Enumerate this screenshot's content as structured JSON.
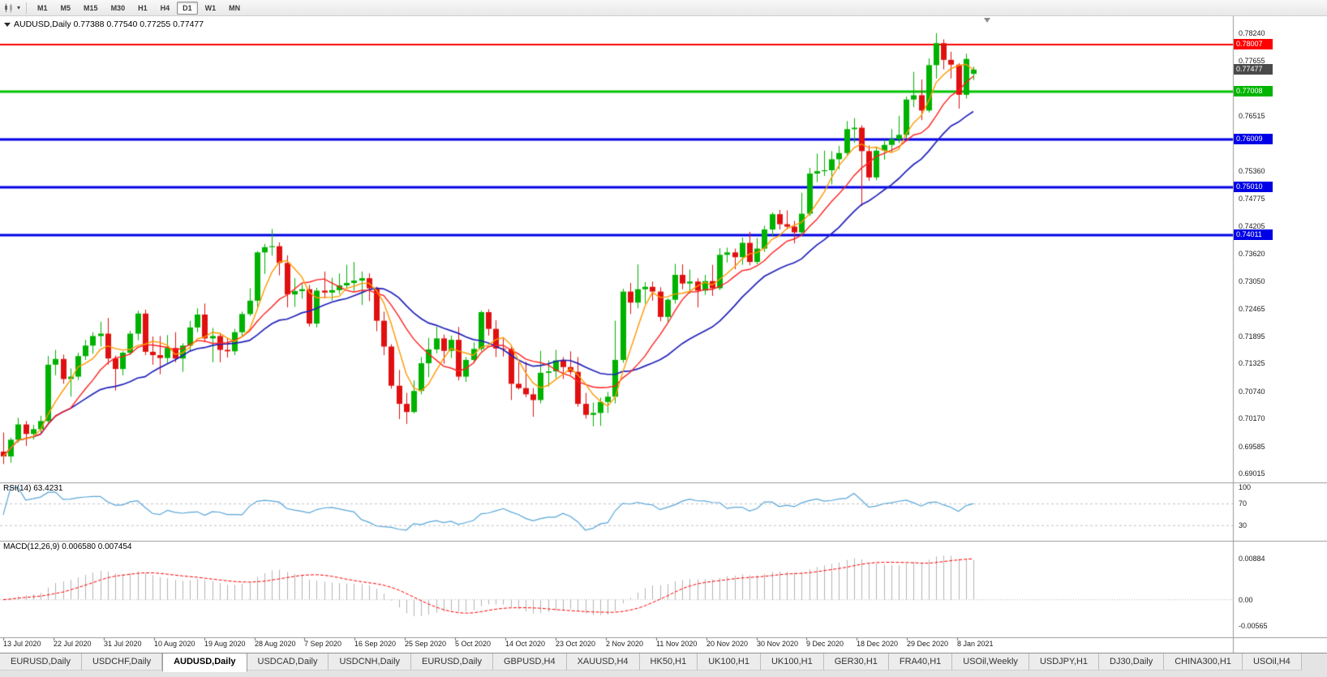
{
  "toolbar": {
    "timeframes": [
      "M1",
      "M5",
      "M15",
      "M30",
      "H1",
      "H4",
      "D1",
      "W1",
      "MN"
    ],
    "active_timeframe": "D1"
  },
  "chart": {
    "symbol": "AUDUSD",
    "period": "Daily",
    "title": "AUDUSD,Daily 0.77388 0.77540 0.77255 0.77477",
    "open": "0.77388",
    "high": "0.77540",
    "low": "0.77255",
    "close": "0.77477"
  },
  "price_axis": {
    "ticks": [
      "0.78240",
      "0.77655",
      "0.76515",
      "0.75360",
      "0.74775",
      "0.74205",
      "0.73620",
      "0.73050",
      "0.72465",
      "0.71895",
      "0.71325",
      "0.70740",
      "0.70170",
      "0.69585",
      "0.69015"
    ],
    "badges": [
      {
        "label": "0.78007",
        "price": 0.78007,
        "color": "#ff0000"
      },
      {
        "label": "0.77477",
        "price": 0.77477,
        "color": "#4a4a4a"
      },
      {
        "label": "0.77008",
        "price": 0.77008,
        "color": "#00b400"
      },
      {
        "label": "0.76009",
        "price": 0.76009,
        "color": "#0000e6"
      },
      {
        "label": "0.75010",
        "price": 0.7501,
        "color": "#0000e6"
      },
      {
        "label": "0.74011",
        "price": 0.74011,
        "color": "#0000e6"
      }
    ]
  },
  "hlines": [
    {
      "price": 0.78007,
      "color": "#ff0000",
      "width": 2
    },
    {
      "price": 0.77008,
      "color": "#00c400",
      "width": 3
    },
    {
      "price": 0.76009,
      "color": "#0000e6",
      "width": 3
    },
    {
      "price": 0.7501,
      "color": "#0000e6",
      "width": 3
    },
    {
      "price": 0.74011,
      "color": "#0000e6",
      "width": 3
    }
  ],
  "rsi": {
    "label": "RSI(14) 63.4231",
    "period": 14,
    "value": 63.4231,
    "axis": [
      "100",
      "70",
      "30"
    ],
    "levels": [
      70,
      30
    ]
  },
  "macd": {
    "label": "MACD(12,26,9) 0.006580 0.007454",
    "fast": 12,
    "slow": 26,
    "signal_period": 9,
    "value": 0.00658,
    "signal_value": 0.007454,
    "axis": [
      "0.00884",
      "0.00",
      "-0.00565"
    ]
  },
  "chart_data": {
    "type": "candlestick",
    "symbol": "AUDUSD",
    "timeframe": "Daily",
    "y_range": [
      0.6887,
      0.7856
    ],
    "x_labels": [
      "13 Jul 2020",
      "22 Jul 2020",
      "31 Jul 2020",
      "10 Aug 2020",
      "19 Aug 2020",
      "28 Aug 2020",
      "7 Sep 2020",
      "16 Sep 2020",
      "25 Sep 2020",
      "5 Oct 2020",
      "14 Oct 2020",
      "23 Oct 2020",
      "2 Nov 2020",
      "11 Nov 2020",
      "20 Nov 2020",
      "30 Nov 2020",
      "9 Dec 2020",
      "18 Dec 2020",
      "29 Dec 2020",
      "8 Jan 2021"
    ],
    "overlays": [
      {
        "name": "sma-slow",
        "period": 20,
        "color": "#2121bb"
      },
      {
        "name": "sma-medium",
        "period": 10,
        "color": "#ff2020"
      },
      {
        "name": "sma-fast",
        "period": 5,
        "color": "#ff9800"
      }
    ],
    "candles": [
      [
        0.6948,
        0.6988,
        0.6922,
        0.6938
      ],
      [
        0.6938,
        0.6977,
        0.6925,
        0.6973
      ],
      [
        0.6973,
        0.7019,
        0.6967,
        0.7005
      ],
      [
        0.7005,
        0.7012,
        0.696,
        0.6985
      ],
      [
        0.6985,
        0.7004,
        0.6973,
        0.6995
      ],
      [
        0.6995,
        0.7023,
        0.6985,
        0.7012
      ],
      [
        0.7012,
        0.7148,
        0.7008,
        0.713
      ],
      [
        0.713,
        0.7161,
        0.7108,
        0.7142
      ],
      [
        0.7142,
        0.7151,
        0.709,
        0.71
      ],
      [
        0.71,
        0.7122,
        0.7063,
        0.7105
      ],
      [
        0.7105,
        0.7155,
        0.7098,
        0.7148
      ],
      [
        0.7148,
        0.7182,
        0.714,
        0.717
      ],
      [
        0.717,
        0.7198,
        0.7153,
        0.719
      ],
      [
        0.719,
        0.722,
        0.7168,
        0.7195
      ],
      [
        0.7195,
        0.7228,
        0.713,
        0.7143
      ],
      [
        0.7143,
        0.7149,
        0.7076,
        0.7121
      ],
      [
        0.7121,
        0.7158,
        0.7108,
        0.7155
      ],
      [
        0.7155,
        0.7201,
        0.715,
        0.7195
      ],
      [
        0.7195,
        0.7243,
        0.7181,
        0.7237
      ],
      [
        0.7237,
        0.7245,
        0.715,
        0.7157
      ],
      [
        0.7157,
        0.7189,
        0.713,
        0.715
      ],
      [
        0.715,
        0.719,
        0.711,
        0.7144
      ],
      [
        0.7144,
        0.7192,
        0.7133,
        0.7165
      ],
      [
        0.7165,
        0.7198,
        0.7135,
        0.7143
      ],
      [
        0.7143,
        0.7175,
        0.7115,
        0.717
      ],
      [
        0.717,
        0.7222,
        0.7158,
        0.7208
      ],
      [
        0.7208,
        0.7248,
        0.7198,
        0.7235
      ],
      [
        0.7235,
        0.7258,
        0.7177,
        0.7185
      ],
      [
        0.7185,
        0.7207,
        0.7135,
        0.719
      ],
      [
        0.719,
        0.7196,
        0.7135,
        0.7161
      ],
      [
        0.7161,
        0.7185,
        0.7145,
        0.7158
      ],
      [
        0.7158,
        0.7205,
        0.715,
        0.7198
      ],
      [
        0.7198,
        0.7241,
        0.719,
        0.7236
      ],
      [
        0.7236,
        0.729,
        0.7232,
        0.7264
      ],
      [
        0.7264,
        0.7368,
        0.7251,
        0.7365
      ],
      [
        0.7365,
        0.7383,
        0.732,
        0.7376
      ],
      [
        0.7376,
        0.7414,
        0.7358,
        0.7378
      ],
      [
        0.7378,
        0.7386,
        0.7317,
        0.7343
      ],
      [
        0.7343,
        0.7359,
        0.725,
        0.7277
      ],
      [
        0.7277,
        0.7311,
        0.7251,
        0.7284
      ],
      [
        0.7284,
        0.7299,
        0.7268,
        0.7288
      ],
      [
        0.7288,
        0.7297,
        0.721,
        0.7216
      ],
      [
        0.7216,
        0.7291,
        0.7208,
        0.7285
      ],
      [
        0.7285,
        0.7325,
        0.7269,
        0.7281
      ],
      [
        0.7281,
        0.7312,
        0.7264,
        0.7286
      ],
      [
        0.7286,
        0.7321,
        0.7278,
        0.7296
      ],
      [
        0.7296,
        0.7339,
        0.7289,
        0.7301
      ],
      [
        0.7301,
        0.7345,
        0.7284,
        0.7306
      ],
      [
        0.7306,
        0.7325,
        0.7255,
        0.7311
      ],
      [
        0.7311,
        0.7321,
        0.7263,
        0.729
      ],
      [
        0.729,
        0.7293,
        0.72,
        0.7222
      ],
      [
        0.7222,
        0.7241,
        0.715,
        0.7168
      ],
      [
        0.7168,
        0.7173,
        0.708,
        0.7086
      ],
      [
        0.7086,
        0.7119,
        0.7016,
        0.7048
      ],
      [
        0.7048,
        0.7071,
        0.7006,
        0.7031
      ],
      [
        0.7031,
        0.7097,
        0.7028,
        0.7075
      ],
      [
        0.7075,
        0.7146,
        0.7068,
        0.7133
      ],
      [
        0.7133,
        0.7186,
        0.7104,
        0.7162
      ],
      [
        0.7162,
        0.721,
        0.7154,
        0.7185
      ],
      [
        0.7185,
        0.7193,
        0.7132,
        0.7159
      ],
      [
        0.7159,
        0.7191,
        0.7144,
        0.7182
      ],
      [
        0.7182,
        0.7209,
        0.7097,
        0.7105
      ],
      [
        0.7105,
        0.7146,
        0.7094,
        0.714
      ],
      [
        0.714,
        0.7177,
        0.7133,
        0.7163
      ],
      [
        0.7163,
        0.7243,
        0.7158,
        0.724
      ],
      [
        0.724,
        0.7246,
        0.7191,
        0.7205
      ],
      [
        0.7205,
        0.7223,
        0.7146,
        0.7164
      ],
      [
        0.7164,
        0.7185,
        0.7147,
        0.7163
      ],
      [
        0.7163,
        0.7171,
        0.7056,
        0.709
      ],
      [
        0.709,
        0.7135,
        0.7078,
        0.7081
      ],
      [
        0.7081,
        0.7136,
        0.7062,
        0.7068
      ],
      [
        0.7068,
        0.7081,
        0.7021,
        0.7056
      ],
      [
        0.7056,
        0.7159,
        0.7049,
        0.7113
      ],
      [
        0.7113,
        0.7139,
        0.7084,
        0.7116
      ],
      [
        0.7116,
        0.7161,
        0.7102,
        0.7139
      ],
      [
        0.7139,
        0.7146,
        0.71,
        0.7125
      ],
      [
        0.7125,
        0.7158,
        0.7109,
        0.7115
      ],
      [
        0.7115,
        0.7146,
        0.7042,
        0.7048
      ],
      [
        0.7048,
        0.7071,
        0.7017,
        0.7025
      ],
      [
        0.7025,
        0.7051,
        0.7001,
        0.7029
      ],
      [
        0.7029,
        0.7061,
        0.7002,
        0.7052
      ],
      [
        0.7052,
        0.7073,
        0.7029,
        0.7063
      ],
      [
        0.7063,
        0.7222,
        0.7049,
        0.714
      ],
      [
        0.714,
        0.7289,
        0.7134,
        0.7283
      ],
      [
        0.7283,
        0.7301,
        0.7236,
        0.726
      ],
      [
        0.726,
        0.734,
        0.7248,
        0.7288
      ],
      [
        0.7288,
        0.7303,
        0.7258,
        0.7293
      ],
      [
        0.7293,
        0.7304,
        0.7264,
        0.7283
      ],
      [
        0.7283,
        0.7292,
        0.7221,
        0.723
      ],
      [
        0.723,
        0.7269,
        0.7219,
        0.7266
      ],
      [
        0.7266,
        0.7341,
        0.7258,
        0.7318
      ],
      [
        0.7318,
        0.734,
        0.7288,
        0.73
      ],
      [
        0.73,
        0.7329,
        0.7279,
        0.7304
      ],
      [
        0.7304,
        0.7311,
        0.725,
        0.7285
      ],
      [
        0.7285,
        0.7318,
        0.7276,
        0.7305
      ],
      [
        0.7305,
        0.7339,
        0.7274,
        0.729
      ],
      [
        0.729,
        0.7374,
        0.7286,
        0.736
      ],
      [
        0.736,
        0.7375,
        0.7344,
        0.7365
      ],
      [
        0.7365,
        0.7373,
        0.733,
        0.7355
      ],
      [
        0.7355,
        0.7396,
        0.7339,
        0.7385
      ],
      [
        0.7385,
        0.7408,
        0.7338,
        0.7345
      ],
      [
        0.7345,
        0.7395,
        0.734,
        0.7373
      ],
      [
        0.7373,
        0.7421,
        0.7366,
        0.7413
      ],
      [
        0.7413,
        0.7449,
        0.7399,
        0.7445
      ],
      [
        0.7445,
        0.7454,
        0.7413,
        0.7424
      ],
      [
        0.7424,
        0.7453,
        0.7414,
        0.7419
      ],
      [
        0.7419,
        0.7431,
        0.7384,
        0.7407
      ],
      [
        0.7407,
        0.749,
        0.7399,
        0.7446
      ],
      [
        0.7446,
        0.7542,
        0.7441,
        0.753
      ],
      [
        0.753,
        0.7572,
        0.7512,
        0.7535
      ],
      [
        0.7535,
        0.7578,
        0.7525,
        0.7537
      ],
      [
        0.7537,
        0.7577,
        0.7507,
        0.756
      ],
      [
        0.756,
        0.7588,
        0.7539,
        0.7573
      ],
      [
        0.7573,
        0.764,
        0.7568,
        0.7623
      ],
      [
        0.7623,
        0.7646,
        0.7594,
        0.7626
      ],
      [
        0.7626,
        0.7631,
        0.7462,
        0.7577
      ],
      [
        0.7577,
        0.7589,
        0.7515,
        0.7522
      ],
      [
        0.7522,
        0.7586,
        0.7516,
        0.7578
      ],
      [
        0.7578,
        0.7601,
        0.7559,
        0.759
      ],
      [
        0.759,
        0.7623,
        0.7576,
        0.7602
      ],
      [
        0.7602,
        0.7651,
        0.7594,
        0.7611
      ],
      [
        0.7611,
        0.7691,
        0.7604,
        0.7685
      ],
      [
        0.7685,
        0.7743,
        0.7669,
        0.7694
      ],
      [
        0.7694,
        0.7727,
        0.7642,
        0.7662
      ],
      [
        0.7662,
        0.7771,
        0.7658,
        0.7757
      ],
      [
        0.7757,
        0.7824,
        0.7729,
        0.7803
      ],
      [
        0.7803,
        0.7811,
        0.7748,
        0.7768
      ],
      [
        0.7768,
        0.7785,
        0.7729,
        0.7758
      ],
      [
        0.7758,
        0.7761,
        0.7666,
        0.7695
      ],
      [
        0.7695,
        0.7781,
        0.7687,
        0.777
      ],
      [
        0.77388,
        0.7754,
        0.77255,
        0.77477
      ]
    ]
  },
  "tabs": {
    "active_index": 2,
    "items": [
      "EURUSD,Daily",
      "USDCHF,Daily",
      "AUDUSD,Daily",
      "USDCAD,Daily",
      "USDCNH,Daily",
      "EURUSD,Daily",
      "GBPUSD,H4",
      "XAUUSD,H4",
      "HK50,H1",
      "UK100,H1",
      "UK100,H1",
      "GER30,H1",
      "FRA40,H1",
      "USOil,Weekly",
      "USDJPY,H1",
      "DJ30,Daily",
      "CHINA300,H1",
      "USOil,H4"
    ]
  },
  "colors": {
    "background": "#ffffff",
    "up": "#00b200",
    "down": "#e01010",
    "rsi": "#58a6d8",
    "macd_hist": "#b4b4b4",
    "macd_signal": "#ff0000",
    "axis_text": "#1c1c1c",
    "separator": "#9a9a9a"
  }
}
